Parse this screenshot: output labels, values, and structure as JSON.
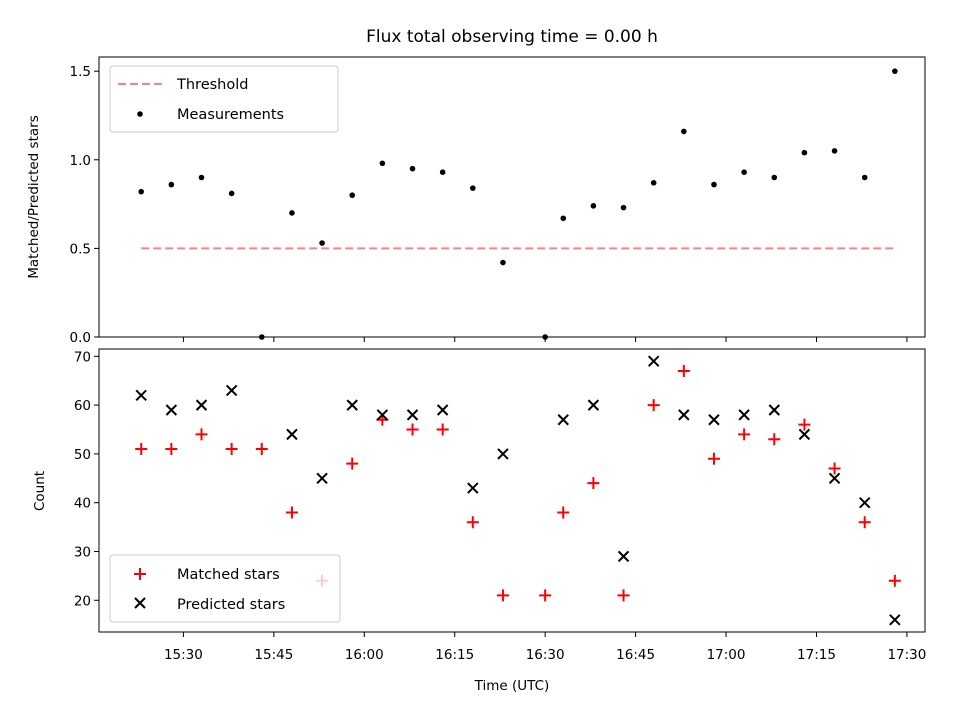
{
  "chart_data": [
    {
      "type": "scatter",
      "title": "Flux total observing time = 0.00 h",
      "ylabel": "Matched/Predicted stars",
      "xlim": [
        "15:16",
        "17:33"
      ],
      "ylim": [
        0,
        1.58
      ],
      "y_ticks": [
        "0.0",
        "0.5",
        "1.0",
        "1.5"
      ],
      "grid": false,
      "legend": "upper-left",
      "series": [
        {
          "name": "Threshold",
          "kind": "dashed-line",
          "color": "#ff8080",
          "x": [
            "15:23",
            "17:28"
          ],
          "y": [
            0.5,
            0.5
          ]
        },
        {
          "name": "Measurements",
          "kind": "points",
          "color": "#000000",
          "x": [
            "15:23",
            "15:28",
            "15:33",
            "15:38",
            "15:43",
            "15:48",
            "15:53",
            "15:58",
            "16:03",
            "16:08",
            "16:13",
            "16:18",
            "16:23",
            "16:30",
            "16:33",
            "16:38",
            "16:43",
            "16:48",
            "16:53",
            "16:58",
            "17:03",
            "17:08",
            "17:13",
            "17:18",
            "17:23",
            "17:28"
          ],
          "y": [
            0.82,
            0.86,
            0.9,
            0.81,
            0.0,
            0.7,
            0.53,
            0.8,
            0.98,
            0.95,
            0.93,
            0.84,
            0.42,
            0.0,
            0.67,
            0.74,
            0.73,
            0.87,
            1.16,
            0.86,
            0.93,
            0.9,
            1.04,
            1.05,
            0.9,
            1.5
          ]
        }
      ]
    },
    {
      "type": "scatter",
      "xlabel": "Time (UTC)",
      "ylabel": "Count",
      "xlim": [
        "15:16",
        "17:33"
      ],
      "ylim": [
        13.5,
        71.5
      ],
      "x_ticks": [
        "15:30",
        "15:45",
        "16:00",
        "16:15",
        "16:30",
        "16:45",
        "17:00",
        "17:15",
        "17:30"
      ],
      "y_ticks": [
        "20",
        "30",
        "40",
        "50",
        "60",
        "70"
      ],
      "grid": false,
      "legend": "lower-left",
      "series": [
        {
          "name": "Matched stars",
          "marker": "plus",
          "color": "#ff0000",
          "x": [
            "15:23",
            "15:28",
            "15:33",
            "15:38",
            "15:43",
            "15:48",
            "15:53",
            "15:58",
            "16:03",
            "16:08",
            "16:13",
            "16:18",
            "16:23",
            "16:30",
            "16:33",
            "16:38",
            "16:43",
            "16:48",
            "16:53",
            "16:58",
            "17:03",
            "17:08",
            "17:13",
            "17:18",
            "17:23",
            "17:28"
          ],
          "y": [
            51,
            51,
            54,
            51,
            51,
            38,
            24,
            48,
            57,
            55,
            55,
            36,
            21,
            21,
            38,
            44,
            21,
            60,
            67,
            49,
            54,
            53,
            56,
            47,
            36,
            24
          ]
        },
        {
          "name": "Predicted stars",
          "marker": "x",
          "color": "#000000",
          "x": [
            "15:23",
            "15:28",
            "15:33",
            "15:38",
            "15:48",
            "15:53",
            "15:58",
            "16:03",
            "16:08",
            "16:13",
            "16:18",
            "16:23",
            "16:33",
            "16:38",
            "16:43",
            "16:48",
            "16:53",
            "16:58",
            "17:03",
            "17:08",
            "17:13",
            "17:18",
            "17:23",
            "17:28"
          ],
          "y": [
            62,
            59,
            60,
            63,
            54,
            45,
            60,
            58,
            58,
            59,
            43,
            50,
            57,
            60,
            29,
            69,
            58,
            57,
            58,
            59,
            54,
            45,
            40,
            16
          ]
        }
      ]
    }
  ]
}
